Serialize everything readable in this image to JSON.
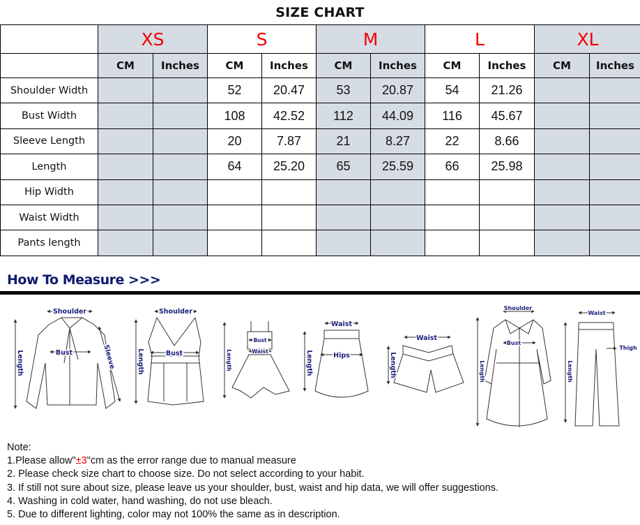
{
  "title": "SIZE CHART",
  "sizes": [
    "XS",
    "S",
    "M",
    "L",
    "XL"
  ],
  "units": {
    "cm": "CM",
    "inches": "Inches"
  },
  "rows": [
    {
      "label": "Shoulder Width",
      "values": [
        "",
        "",
        "52",
        "20.47",
        "53",
        "20.87",
        "54",
        "21.26",
        "",
        ""
      ]
    },
    {
      "label": "Bust Width",
      "values": [
        "",
        "",
        "108",
        "42.52",
        "112",
        "44.09",
        "116",
        "45.67",
        "",
        ""
      ]
    },
    {
      "label": "Sleeve Length",
      "values": [
        "",
        "",
        "20",
        "7.87",
        "21",
        "8.27",
        "22",
        "8.66",
        "",
        ""
      ]
    },
    {
      "label": "Length",
      "values": [
        "",
        "",
        "64",
        "25.20",
        "65",
        "25.59",
        "66",
        "25.98",
        "",
        ""
      ]
    },
    {
      "label": "Hip Width",
      "values": [
        "",
        "",
        "",
        "",
        "",
        "",
        "",
        "",
        "",
        ""
      ]
    },
    {
      "label": "Waist Width",
      "values": [
        "",
        "",
        "",
        "",
        "",
        "",
        "",
        "",
        "",
        ""
      ]
    },
    {
      "label": "Pants length",
      "values": [
        "",
        "",
        "",
        "",
        "",
        "",
        "",
        "",
        "",
        ""
      ]
    }
  ],
  "colors": {
    "size_label": "#f20000",
    "shaded_column": "#d6dce4",
    "heading": "#0f1a6e"
  },
  "how_to_measure": {
    "heading": "How To Measure >>>",
    "labels": {
      "shoulder": "Shoulder",
      "bust": "Bust",
      "length": "Length",
      "sleeve": "Sleeve",
      "waist": "Waist",
      "hips": "Hips",
      "thigh": "Thigh"
    }
  },
  "notes": {
    "heading": "Note:",
    "n1_prefix": "1.Please allow\"",
    "n1_highlight": "±3",
    "n1_suffix": "\"cm as the error range due to manual measure",
    "n2": "2. Please check size chart to choose size. Do not select according to your habit.",
    "n3": "3. If still not sure about size, please leave us your shoulder, bust, waist and hip data, we will offer suggestions.",
    "n4": "4. Washing in cold water, hand washing, do not use bleach.",
    "n5": "5. Due to different lighting, color may not 100% the same as in description."
  }
}
